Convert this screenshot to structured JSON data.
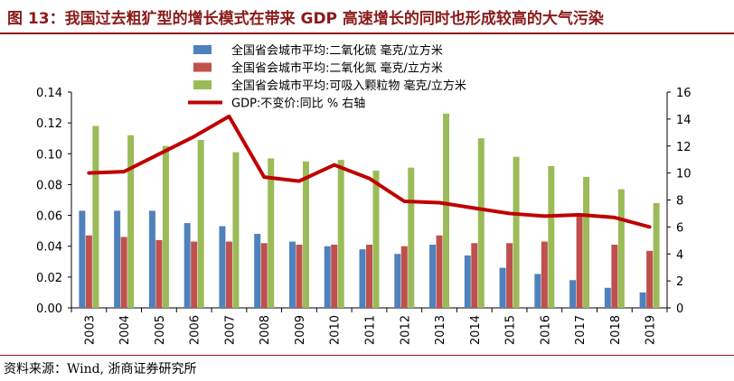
{
  "header": {
    "title": "图 13：我国过去粗犷型的增长模式在带来 GDP 高速增长的同时也形成较高的大气污染"
  },
  "footer": {
    "source": "资料来源：Wind, 浙商证券研究所"
  },
  "colors": {
    "title": "#8B1A1A",
    "so2": "#4F81BD",
    "no2": "#C0504D",
    "pm10": "#9BBB59",
    "gdp": "#C00000"
  },
  "chart_data": {
    "type": "bar",
    "categories": [
      "2003",
      "2004",
      "2005",
      "2006",
      "2007",
      "2008",
      "2009",
      "2010",
      "2011",
      "2012",
      "2013",
      "2014",
      "2015",
      "2016",
      "2017",
      "2018",
      "2019"
    ],
    "series": [
      {
        "name": "全国省会城市平均:二氧化硫 毫克/立方米",
        "type": "bar",
        "axis": "left",
        "values": [
          0.063,
          0.063,
          0.063,
          0.055,
          0.053,
          0.048,
          0.043,
          0.04,
          0.038,
          0.035,
          0.041,
          0.034,
          0.026,
          0.022,
          0.018,
          0.013,
          0.01
        ]
      },
      {
        "name": "全国省会城市平均:二氧化氮 毫克/立方米",
        "type": "bar",
        "axis": "left",
        "values": [
          0.047,
          0.046,
          0.044,
          0.043,
          0.043,
          0.042,
          0.041,
          0.041,
          0.041,
          0.04,
          0.047,
          0.042,
          0.042,
          0.043,
          0.06,
          0.041,
          0.037
        ]
      },
      {
        "name": "全国省会城市平均:可吸入颗粒物 毫克/立方米",
        "type": "bar",
        "axis": "left",
        "values": [
          0.118,
          0.112,
          0.105,
          0.109,
          0.101,
          0.097,
          0.095,
          0.096,
          0.089,
          0.091,
          0.126,
          0.11,
          0.098,
          0.092,
          0.085,
          0.077,
          0.068
        ]
      },
      {
        "name": "GDP:不变价:同比 % 右轴",
        "type": "line",
        "axis": "right",
        "values": [
          10.0,
          10.1,
          11.4,
          12.7,
          14.2,
          9.7,
          9.4,
          10.6,
          9.6,
          7.9,
          7.8,
          7.4,
          7.0,
          6.8,
          6.9,
          6.7,
          6.0
        ]
      }
    ],
    "y_left": {
      "min": 0,
      "max": 0.14,
      "ticks": [
        "0.00",
        "0.02",
        "0.04",
        "0.06",
        "0.08",
        "0.10",
        "0.12",
        "0.14"
      ]
    },
    "y_right": {
      "min": 0,
      "max": 16,
      "ticks": [
        "0",
        "2",
        "4",
        "6",
        "8",
        "10",
        "12",
        "14",
        "16"
      ]
    },
    "legend_position": "top-left",
    "grid": false
  }
}
